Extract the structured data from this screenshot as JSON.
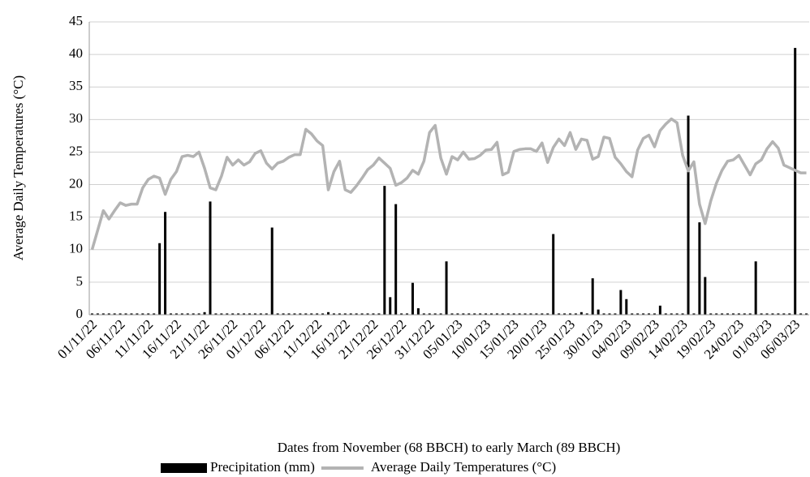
{
  "chart_data": {
    "type": "combo",
    "x_label": "Dates from November (68 BBCH) to early March (89 BBCH)",
    "y_label": "Average Daily Temperatures (°C)",
    "categories": [
      "01/11/22",
      null,
      null,
      null,
      null,
      "06/11/22",
      null,
      null,
      null,
      null,
      "11/11/22",
      null,
      null,
      null,
      null,
      "16/11/22",
      null,
      null,
      null,
      null,
      "21/11/22",
      null,
      null,
      null,
      null,
      "26/11/22",
      null,
      null,
      null,
      null,
      "01/12/22",
      null,
      null,
      null,
      null,
      "06/12/22",
      null,
      null,
      null,
      null,
      "11/12/22",
      null,
      null,
      null,
      null,
      "16/12/22",
      null,
      null,
      null,
      null,
      "21/12/22",
      null,
      null,
      null,
      null,
      "26/12/22",
      null,
      null,
      null,
      null,
      "31/12/22",
      null,
      null,
      null,
      null,
      "05/01/23",
      null,
      null,
      null,
      null,
      "10/01/23",
      null,
      null,
      null,
      null,
      "15/01/23",
      null,
      null,
      null,
      null,
      "20/01/23",
      null,
      null,
      null,
      null,
      "25/01/23",
      null,
      null,
      null,
      null,
      "30/01/23",
      null,
      null,
      null,
      null,
      "04/02/23",
      null,
      null,
      null,
      null,
      "09/02/23",
      null,
      null,
      null,
      null,
      "14/02/23",
      null,
      null,
      null,
      null,
      "19/02/23",
      null,
      null,
      null,
      null,
      "24/02/23",
      null,
      null,
      null,
      null,
      "01/03/23",
      null,
      null,
      null,
      null,
      "06/03/23",
      null,
      null
    ],
    "series": [
      {
        "name": "Precipitation (mm)",
        "type": "bar",
        "color": "#000000",
        "values": [
          0.2,
          0.2,
          0.2,
          0.2,
          0.2,
          0.2,
          0.2,
          0.2,
          0.2,
          0.2,
          0.2,
          0.2,
          11.0,
          15.8,
          0.2,
          0.2,
          0.2,
          0.2,
          0.2,
          0.2,
          0.4,
          17.4,
          0.2,
          0.2,
          0.2,
          0.2,
          0.2,
          0.2,
          0.2,
          0.2,
          0.2,
          0.2,
          13.4,
          0.2,
          0.2,
          0.2,
          0.2,
          0.2,
          0.2,
          0.2,
          0.2,
          0.2,
          0.4,
          0.2,
          0.2,
          0.2,
          0.2,
          0.2,
          0.2,
          0.2,
          0.2,
          0.2,
          19.8,
          2.7,
          17.0,
          0.2,
          0.2,
          4.9,
          1.0,
          0.2,
          0.2,
          0.2,
          0.2,
          8.2,
          0.2,
          0.2,
          0.2,
          0.2,
          0.2,
          0.2,
          0.2,
          0.2,
          0.2,
          0.2,
          0.2,
          0.2,
          0.2,
          0.2,
          0.2,
          0.2,
          0.2,
          0.2,
          12.4,
          0.2,
          0.2,
          0.2,
          0.2,
          0.4,
          0.2,
          5.6,
          0.8,
          0.2,
          0.2,
          0.2,
          3.8,
          2.4,
          0.2,
          0.2,
          0.2,
          0.2,
          0.2,
          1.4,
          0.2,
          0.2,
          0.2,
          0.2,
          30.6,
          0.2,
          14.2,
          5.8,
          0.2,
          0.2,
          0.2,
          0.2,
          0.2,
          0.2,
          0.2,
          0.2,
          8.2,
          0.2,
          0.2,
          0.2,
          0.2,
          0.2,
          0.2,
          41.0,
          0.2,
          0.2
        ]
      },
      {
        "name": "Average Daily Temperatures (°C)",
        "type": "line",
        "color": "#b3b3b3",
        "values": [
          10,
          13,
          16,
          14.7,
          16,
          17.2,
          16.8,
          17,
          17,
          19.5,
          20.8,
          21.3,
          21,
          18.5,
          20.8,
          22,
          24.3,
          24.5,
          24.3,
          25,
          22.5,
          19.5,
          19.2,
          21.3,
          24.2,
          23,
          23.8,
          23,
          23.5,
          24.8,
          25.2,
          23.3,
          22.4,
          23.3,
          23.6,
          24.2,
          24.6,
          24.6,
          28.5,
          27.8,
          26.7,
          26,
          19.2,
          22,
          23.6,
          19.2,
          18.8,
          19.8,
          21,
          22.3,
          23,
          24.1,
          23.3,
          22.5,
          19.9,
          20.3,
          21,
          22.2,
          21.6,
          23.6,
          28,
          29.1,
          24.1,
          21.6,
          24.3,
          23.8,
          25,
          23.9,
          24,
          24.5,
          25.3,
          25.4,
          26.5,
          21.5,
          21.9,
          25.1,
          25.4,
          25.5,
          25.5,
          25.1,
          26.4,
          23.4,
          25.7,
          27,
          26,
          28,
          25.4,
          27,
          26.8,
          23.9,
          24.3,
          27.3,
          27.1,
          24.2,
          23.2,
          22,
          21.2,
          25.3,
          27.1,
          27.6,
          25.8,
          28.3,
          29.3,
          30.1,
          29.5,
          24.5,
          22.1,
          23.5,
          17,
          14,
          17.5,
          20.2,
          22.2,
          23.6,
          23.8,
          24.5,
          23,
          21.5,
          23.2,
          23.8,
          25.5,
          26.6,
          25.6,
          23,
          22.6,
          22.2,
          21.8,
          21.8
        ]
      }
    ],
    "ylim": [
      0,
      45
    ],
    "yticks": [
      0,
      5,
      10,
      15,
      20,
      25,
      30,
      35,
      40,
      45
    ],
    "grid": true,
    "legend": "bottom"
  }
}
